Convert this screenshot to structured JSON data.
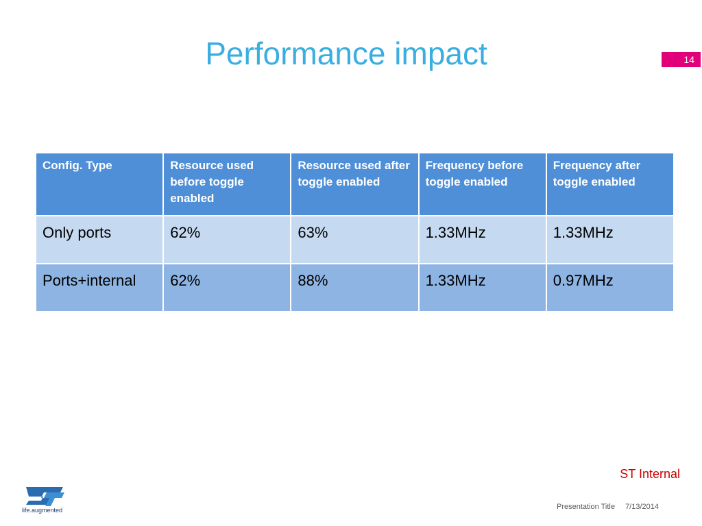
{
  "slide": {
    "title": "Performance impact",
    "page_number": "14",
    "classification": "ST Internal",
    "footer": {
      "presentation_title": "Presentation Title",
      "date": "7/13/2014"
    },
    "logo": {
      "name": "st-logo",
      "tagline": "life.augmented"
    }
  },
  "table": {
    "headers": [
      "Config. Type",
      "Resource used before toggle enabled",
      "Resource used after toggle enabled",
      "Frequency before toggle enabled",
      "Frequency after toggle enabled"
    ],
    "rows": [
      [
        "Only ports",
        "62%",
        "63%",
        "1.33MHz",
        "1.33MHz"
      ],
      [
        "Ports+internal",
        "62%",
        "88%",
        "1.33MHz",
        "0.97MHz"
      ]
    ]
  },
  "colors": {
    "title": "#3aaee0",
    "header_fill": "#4f8fd8",
    "row_light": "#c5d9f1",
    "row_dark": "#8db4e2",
    "page_badge": "#e2007a",
    "classification": "#cc0000"
  }
}
